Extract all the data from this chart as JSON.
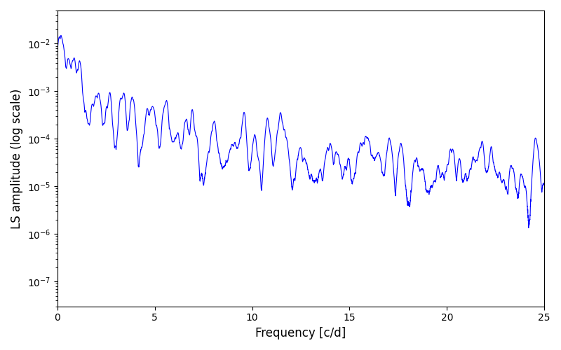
{
  "title": "",
  "xlabel": "Frequency [c/d]",
  "ylabel": "LS amplitude (log scale)",
  "line_color": "#0000ff",
  "line_width": 0.8,
  "xmin": 0,
  "xmax": 25,
  "ymin": 3e-08,
  "ymax": 0.05,
  "yscale": "log",
  "figsize": [
    8.0,
    5.0
  ],
  "dpi": 100,
  "seed": 17,
  "n_points": 5000
}
